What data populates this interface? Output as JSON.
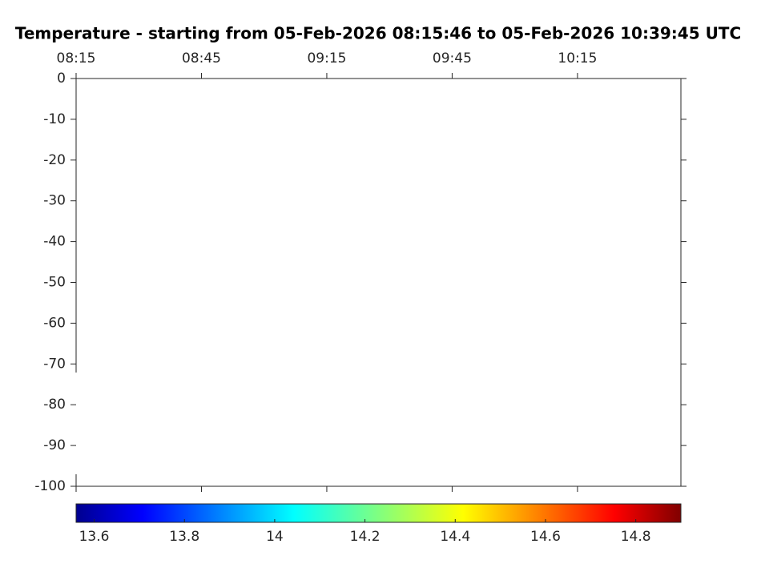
{
  "chart_data": {
    "type": "line",
    "title": "Temperature - starting from 05-Feb-2026 08:15:46 to 05-Feb-2026 10:39:45 UTC",
    "x_axis_position": "top",
    "xlim": [
      495,
      639.75
    ],
    "xticks": [
      {
        "value": 495,
        "label": "08:15"
      },
      {
        "value": 525,
        "label": "08:45"
      },
      {
        "value": 555,
        "label": "09:15"
      },
      {
        "value": 585,
        "label": "09:45"
      },
      {
        "value": 615,
        "label": "10:15"
      }
    ],
    "ylim": [
      -100,
      0
    ],
    "yticks": [
      0,
      -10,
      -20,
      -30,
      -40,
      -50,
      -60,
      -70,
      -80,
      -90,
      -100
    ],
    "grid": false,
    "colorbar": {
      "colormap": "jet",
      "clim": [
        13.56,
        14.9
      ],
      "ticks": [
        13.6,
        13.8,
        14,
        14.2,
        14.4,
        14.6,
        14.8
      ]
    }
  }
}
